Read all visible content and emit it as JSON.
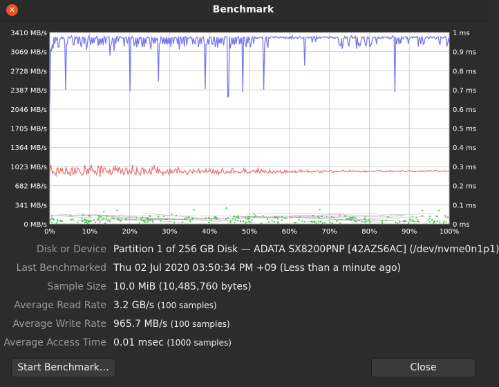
{
  "window": {
    "title": "Benchmark",
    "close_glyph": "×"
  },
  "info": {
    "disk_label": "Disk or Device",
    "disk_value": "Partition 1 of 256 GB Disk — ADATA SX8200PNP [42AZS6AC] (/dev/nvme0n1p1)",
    "last_label": "Last Benchmarked",
    "last_value": "Thu 02 Jul 2020 03:50:34 PM +09 (Less than a minute ago)",
    "sample_label": "Sample Size",
    "sample_value": "10.0 MiB (10,485,760 bytes)",
    "read_label": "Average Read Rate",
    "read_value": "3.2 GB/s",
    "read_note": "(100 samples)",
    "write_label": "Average Write Rate",
    "write_value": "965.7 MB/s",
    "write_note": "(100 samples)",
    "access_label": "Average Access Time",
    "access_value": "0.01 msec",
    "access_note": "(1000 samples)"
  },
  "buttons": {
    "start": "Start Benchmark…",
    "close": "Close"
  },
  "chart_data": {
    "type": "line",
    "x_ticks": [
      "0%",
      "10%",
      "20%",
      "30%",
      "40%",
      "50%",
      "60%",
      "70%",
      "80%",
      "90%",
      "100%"
    ],
    "y_left_ticks": [
      "0 MB/s",
      "341 MB/s",
      "682 MB/s",
      "1023 MB/s",
      "1364 MB/s",
      "1705 MB/s",
      "2046 MB/s",
      "2387 MB/s",
      "2728 MB/s",
      "3069 MB/s",
      "3410 MB/s"
    ],
    "y_right_ticks": [
      "0 ms",
      "0.1 ms",
      "0.2 ms",
      "0.3 ms",
      "0.4 ms",
      "0.5 ms",
      "0.6 ms",
      "0.7 ms",
      "0.8 ms",
      "0.9 ms",
      "1 ms"
    ],
    "ylim_left": [
      0,
      3410
    ],
    "ylim_right": [
      0,
      1
    ],
    "xlim": [
      0,
      100
    ],
    "grid": true,
    "series": [
      {
        "color": "#7777ee",
        "values": [
          2130,
          3100,
          3080,
          3200,
          3120,
          3330,
          3200,
          3330,
          3280,
          3310,
          3150,
          3150,
          3290,
          3300,
          3330,
          3300,
          3320,
          3310,
          3210,
          2390,
          3180,
          3210,
          3330,
          3320,
          3310,
          3330,
          3350,
          3310,
          3190,
          3190,
          3330,
          3300,
          3330,
          3320,
          3200,
          3340,
          3300,
          3190,
          3150,
          3330,
          3320,
          3200,
          3310,
          3280,
          3100,
          3210,
          3320,
          3350,
          3280,
          3190,
          3320,
          3210,
          3320,
          3220,
          3310,
          3300,
          3340,
          3320,
          3170,
          3310,
          3190,
          3300,
          3210,
          3310,
          3190,
          3340,
          3320,
          3210,
          3320,
          3330,
          3330,
          3330,
          3000,
          3180,
          3210,
          3310,
          3290,
          3080,
          3310,
          3210,
          3330,
          3340,
          3240,
          3330,
          3320,
          3330,
          3320,
          3310,
          3310,
          3160,
          3320,
          3330,
          3300,
          3210,
          3320,
          3320,
          2360,
          3320,
          3310,
          3340,
          3300,
          3170,
          3210,
          3320,
          3150,
          3320,
          3200,
          3310,
          3300,
          3340,
          3210,
          3150,
          3320,
          3150,
          3310,
          3210,
          3320,
          3320,
          3330,
          3320,
          3210,
          3110,
          3320,
          3300,
          3210,
          3320,
          3210,
          3310,
          3280,
          3310,
          2540,
          3190,
          3220,
          3330,
          3310,
          3200,
          3320,
          3200,
          3310,
          3200,
          3330,
          3200,
          3320,
          3200,
          3310,
          3150,
          3320,
          3310,
          3200,
          3320,
          3320,
          3320,
          3290,
          3200,
          3340,
          3110,
          3320,
          3330,
          3200,
          3300,
          3320,
          3160,
          3340,
          3330,
          3180,
          3310,
          3300,
          3320,
          3330,
          3310,
          3320,
          3200,
          3310,
          3240,
          3210,
          3310,
          3330,
          3330,
          3150,
          3250,
          3330,
          3200,
          3310,
          3320,
          3330,
          3180,
          2400,
          3200,
          3200,
          3300,
          3200,
          3330,
          3320,
          3320,
          3200,
          3200,
          3330,
          3320,
          3150,
          3210,
          3330,
          3140,
          3320,
          3220,
          3310,
          3210,
          3320,
          3270,
          3180,
          3320,
          3330,
          3340,
          3320,
          2260,
          2270,
          3340,
          3130,
          3210,
          3330,
          3200,
          3310,
          3190,
          3330,
          3200,
          3320,
          3330,
          3330,
          3200,
          3320,
          3210,
          3320,
          2350,
          3330,
          3320,
          3210,
          3150,
          3340,
          3220,
          3320,
          3310,
          3150,
          3200,
          3330,
          3330,
          3210,
          3330,
          3310,
          3320,
          3300,
          3320,
          3310,
          3320,
          3330,
          3320,
          3310,
          3330,
          2390,
          3170,
          3310,
          3330,
          3200,
          3140,
          3320,
          3310,
          3330,
          3330,
          3330,
          3330,
          3310,
          3330,
          3340,
          3330,
          3320,
          3320,
          3320,
          3310,
          3330,
          3320,
          3320,
          3330,
          3310,
          3320,
          3300,
          3330,
          3320,
          3300,
          3320,
          3300,
          3330,
          3300,
          3350,
          3320,
          3300,
          3310,
          3320,
          3320,
          3300,
          3310,
          3320,
          3340,
          3330,
          3310,
          3310,
          3310,
          3320,
          2820,
          3300,
          3320,
          3330,
          3330,
          3310,
          3320,
          3320,
          3330,
          3230,
          3310,
          3340,
          3330,
          3240,
          3340,
          3300,
          3320,
          3310,
          3330,
          3310,
          3320,
          3330,
          3330,
          3330,
          3320,
          3330,
          3330,
          3320,
          3320,
          3310,
          3340,
          3330,
          3320,
          3320,
          3310,
          3320,
          3300,
          3310,
          3330,
          3330,
          3310,
          3200,
          3180,
          3170,
          3310,
          3120,
          3210,
          3310,
          3340,
          3300,
          3330,
          3330,
          3210,
          3160,
          3310,
          3330,
          3350,
          3310,
          3320,
          3310,
          3320,
          3340,
          3120,
          3330,
          3180,
          3220,
          3170,
          3200,
          3320,
          3330,
          3310,
          3330,
          3240,
          3170,
          3200,
          3330,
          3310,
          3320,
          3150,
          3190,
          3200,
          3310,
          3320,
          3320,
          3330,
          3310,
          3200,
          3320,
          3310,
          3330,
          3300,
          3310,
          3310,
          3330,
          3310,
          3330,
          3330,
          3320,
          3330,
          3320,
          3330,
          3300,
          3320,
          3300,
          3310,
          3350,
          3330,
          3330,
          2350,
          3330,
          3200,
          3290,
          3310,
          3200,
          3310,
          3210,
          3330,
          3310,
          3300,
          3330,
          3330,
          3340,
          3300,
          3320,
          3210,
          3290,
          3310,
          3330,
          3330,
          3310,
          3340,
          3320,
          3320,
          3330,
          3320,
          3340,
          3160,
          3320,
          3310,
          3200,
          3330,
          3320,
          3200,
          3210,
          3300,
          3320,
          3330,
          3330,
          3300,
          3310,
          3330,
          3340,
          3320,
          3310,
          3330,
          3330,
          3310,
          3290,
          3320,
          3330,
          3330,
          3230,
          3190,
          3330,
          3320,
          3310,
          3310,
          3330,
          3340,
          3310,
          3160,
          3200,
          3310,
          3230
        ]
      },
      {
        "color": "#ee7777",
        "values": [
          920,
          1050,
          990,
          900,
          930,
          910,
          900,
          860,
          990,
          1000,
          920,
          900,
          1000,
          940,
          980,
          900,
          890,
          890,
          1010,
          960,
          890,
          920,
          910,
          850,
          990,
          1000,
          880,
          900,
          1010,
          900,
          930,
          1000,
          980,
          960,
          910,
          890,
          870,
          880,
          930,
          1050,
          960,
          880,
          980,
          890,
          1000,
          960,
          1050,
          1000,
          940,
          950,
          910,
          940,
          880,
          910,
          1030,
          1000,
          840,
          1030,
          1020,
          900,
          990,
          1000,
          990,
          940,
          920,
          940,
          900,
          980,
          890,
          880,
          930,
          1000,
          950,
          1040,
          960,
          990,
          920,
          1000,
          1000,
          890,
          960,
          980,
          880,
          890,
          950,
          1000,
          980,
          880,
          930,
          960,
          910,
          900,
          1050,
          940,
          930,
          890,
          880,
          1010,
          930,
          920,
          900,
          870,
          950,
          1000,
          990,
          880,
          970,
          940,
          920,
          900,
          920,
          990,
          890,
          890,
          1000,
          970,
          1050,
          990,
          960,
          910,
          1020,
          900,
          980,
          930,
          920,
          930,
          870,
          920,
          930,
          900,
          930,
          960,
          910,
          880,
          990,
          890,
          950,
          920,
          920,
          950,
          980,
          960,
          900,
          1010,
          970,
          920,
          940,
          920,
          920,
          910,
          950,
          930,
          930,
          880,
          890,
          930,
          960,
          950,
          930,
          900,
          980,
          930,
          940,
          930,
          920,
          930,
          990,
          910,
          910,
          950,
          940,
          920,
          940,
          920,
          980,
          920,
          930,
          930,
          990,
          950,
          910,
          910,
          980,
          900,
          920,
          950,
          900,
          950,
          880,
          920,
          920,
          920,
          990,
          960,
          910,
          900,
          900,
          940,
          920,
          920,
          910,
          940,
          910,
          990,
          990,
          920,
          920,
          940,
          930,
          930,
          910,
          920,
          910,
          920,
          930,
          950,
          990,
          910,
          970,
          930,
          900,
          910,
          920,
          910,
          930,
          930,
          950,
          960,
          930,
          920,
          960,
          910,
          990,
          940,
          910,
          950,
          970,
          930,
          950,
          920,
          950,
          930,
          920,
          900,
          910,
          970,
          920,
          920,
          910,
          940,
          940,
          910,
          920,
          950,
          930,
          930,
          930,
          950,
          900,
          920,
          920,
          920,
          960,
          910,
          950,
          920,
          930,
          930,
          930,
          920,
          940,
          920,
          930,
          950,
          910,
          920,
          930,
          930,
          950,
          960,
          920,
          950,
          930,
          930,
          930,
          940,
          940,
          960,
          920,
          940,
          940,
          920,
          930,
          940,
          940,
          930,
          930,
          940,
          940,
          950,
          930,
          910,
          940,
          930,
          920,
          930,
          950,
          940,
          940,
          940,
          930,
          930,
          950,
          950,
          940,
          920,
          920,
          940,
          930,
          930,
          940,
          930,
          930,
          930,
          940,
          940,
          950,
          960,
          930,
          940,
          940,
          930,
          930,
          930,
          950,
          950,
          930,
          930,
          950,
          940,
          940,
          940,
          950,
          930,
          930,
          940,
          930,
          920,
          940,
          940,
          930,
          950,
          920,
          940,
          930,
          930,
          940,
          940,
          940,
          940,
          930,
          930,
          940,
          940,
          940,
          940,
          950,
          950,
          950,
          930,
          930,
          930,
          930,
          930,
          940,
          930,
          940,
          940,
          950,
          930,
          950,
          940,
          930,
          930,
          940,
          940,
          940,
          940,
          940,
          940,
          930,
          940,
          950,
          950,
          940,
          940,
          930,
          930,
          940,
          940,
          950,
          950,
          940,
          940,
          930,
          940,
          930,
          930,
          940,
          940,
          940,
          940,
          930,
          940,
          930,
          950,
          940,
          930,
          940,
          940,
          940,
          950,
          940,
          940,
          950,
          940,
          940,
          940,
          940,
          950,
          950,
          940,
          940,
          930,
          940,
          930,
          940,
          940,
          940,
          940,
          950,
          940,
          940,
          940,
          940,
          940
        ]
      }
    ]
  }
}
